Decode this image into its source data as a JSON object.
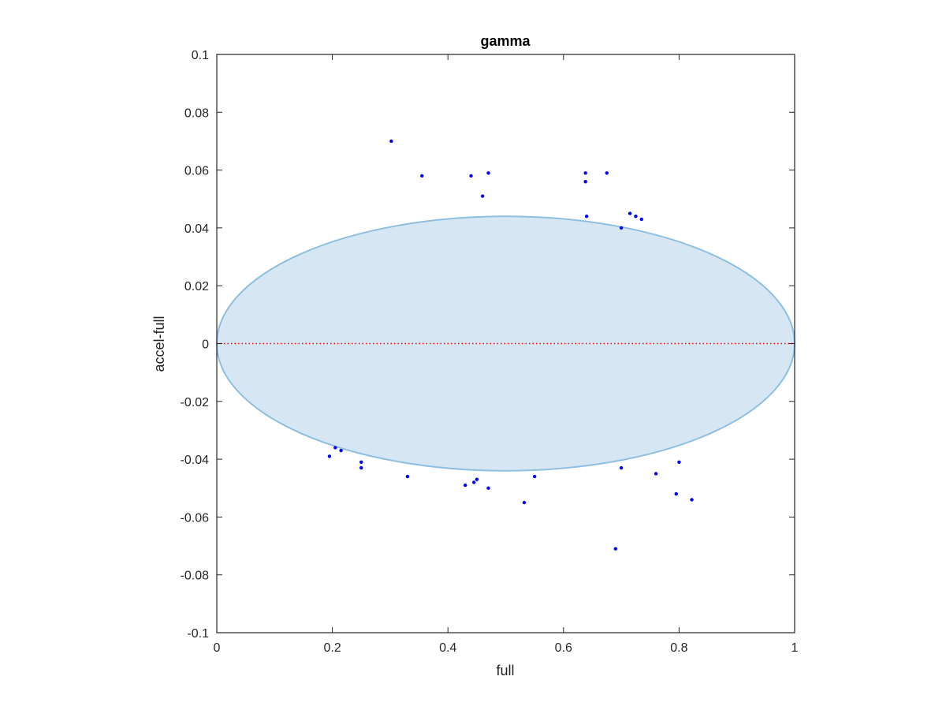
{
  "chart_data": {
    "type": "scatter",
    "title": "gamma",
    "xlabel": "full",
    "ylabel": "accel-full",
    "xlim": [
      0,
      1
    ],
    "ylim": [
      -0.1,
      0.1
    ],
    "x_ticks": [
      "0",
      "0.2",
      "0.4",
      "0.6",
      "0.8",
      "1"
    ],
    "y_ticks": [
      "0.1",
      "0.08",
      "0.06",
      "0.04",
      "0.02",
      "0",
      "-0.02",
      "-0.04",
      "-0.06",
      "-0.08",
      "-0.1"
    ],
    "grid": false,
    "reference_line": {
      "y": 0,
      "style": "dotted",
      "color": "#ff0000"
    },
    "ellipse": {
      "cx": 0.5,
      "cy": 0,
      "rx": 0.5,
      "ry": 0.044,
      "fill": "#d6e6f2",
      "stroke": "#8fbfe0"
    },
    "series_color": "#0000ff",
    "series": [
      {
        "points": [
          [
            0.302,
            0.07
          ],
          [
            0.355,
            0.058
          ],
          [
            0.44,
            0.058
          ],
          [
            0.47,
            0.059
          ],
          [
            0.46,
            0.051
          ],
          [
            0.638,
            0.059
          ],
          [
            0.638,
            0.056
          ],
          [
            0.675,
            0.059
          ],
          [
            0.64,
            0.044
          ],
          [
            0.715,
            0.045
          ],
          [
            0.725,
            0.044
          ],
          [
            0.735,
            0.043
          ],
          [
            0.7,
            0.04
          ],
          [
            0.69,
            -0.071
          ],
          [
            0.822,
            -0.054
          ],
          [
            0.795,
            -0.052
          ],
          [
            0.532,
            -0.055
          ],
          [
            0.43,
            -0.049
          ],
          [
            0.445,
            -0.048
          ],
          [
            0.47,
            -0.05
          ],
          [
            0.33,
            -0.046
          ],
          [
            0.45,
            -0.047
          ],
          [
            0.55,
            -0.046
          ],
          [
            0.195,
            -0.039
          ],
          [
            0.215,
            -0.037
          ],
          [
            0.25,
            -0.043
          ],
          [
            0.25,
            -0.041
          ],
          [
            0.205,
            -0.036
          ],
          [
            0.7,
            -0.043
          ],
          [
            0.76,
            -0.045
          ],
          [
            0.8,
            -0.041
          ]
        ]
      }
    ]
  }
}
